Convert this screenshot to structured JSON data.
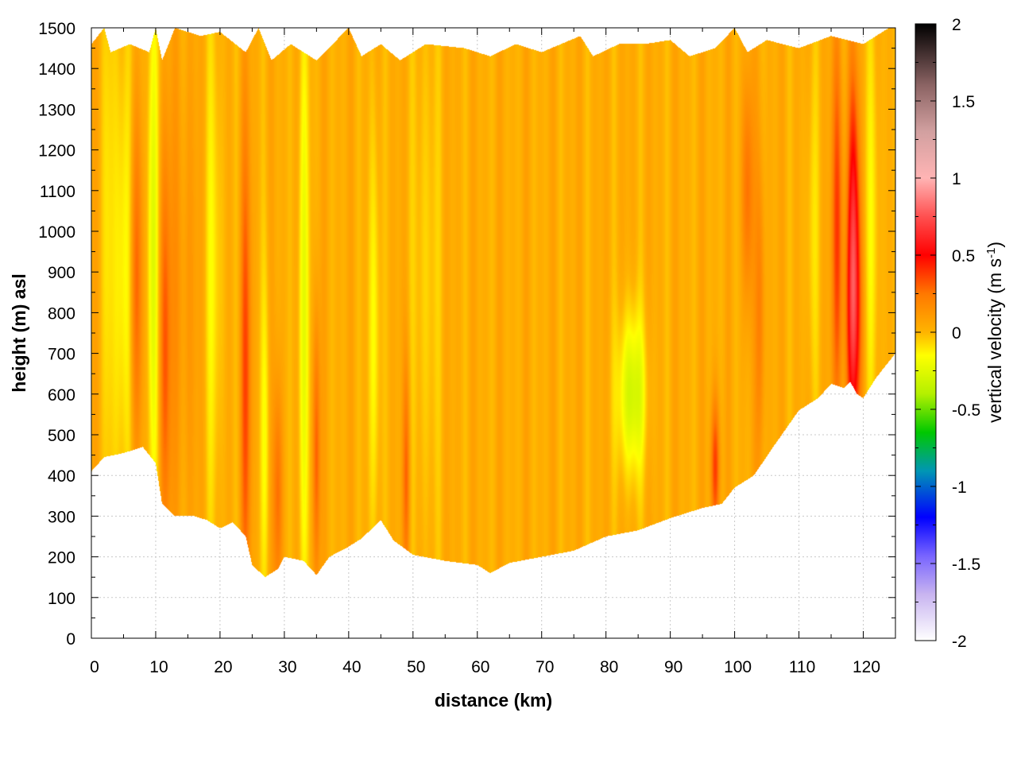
{
  "chart_data": {
    "type": "heatmap",
    "title": "",
    "xlabel": "distance (km)",
    "ylabel": "height (m) asl",
    "xlim": [
      0,
      125
    ],
    "ylim": [
      0,
      1500
    ],
    "x_ticks": [
      "0",
      "10",
      "20",
      "30",
      "40",
      "50",
      "60",
      "70",
      "80",
      "90",
      "100",
      "110",
      "120"
    ],
    "y_ticks": [
      "0",
      "100",
      "200",
      "300",
      "400",
      "500",
      "600",
      "700",
      "800",
      "900",
      "1000",
      "1100",
      "1200",
      "1300",
      "1400",
      "1500"
    ],
    "grid": true,
    "colorbar": {
      "label_main": "vertical velocity (m s",
      "label_sup": "-1",
      "label_close": ")",
      "range": [
        -2,
        2
      ],
      "ticks": [
        "2",
        "1.5",
        "1",
        "0.5",
        "0",
        "-0.5",
        "-1",
        "-1.5",
        "-2"
      ],
      "stops": [
        {
          "value": -2.0,
          "color": "#ffffff"
        },
        {
          "value": -1.7,
          "color": "#c8b4f0"
        },
        {
          "value": -1.45,
          "color": "#7864ff"
        },
        {
          "value": -1.2,
          "color": "#0000ff"
        },
        {
          "value": -0.9,
          "color": "#0096b4"
        },
        {
          "value": -0.65,
          "color": "#00c800"
        },
        {
          "value": -0.4,
          "color": "#b4f000"
        },
        {
          "value": -0.15,
          "color": "#ffff00"
        },
        {
          "value": 0.0,
          "color": "#ffb400"
        },
        {
          "value": 0.25,
          "color": "#ff7800"
        },
        {
          "value": 0.5,
          "color": "#ff0000"
        },
        {
          "value": 0.75,
          "color": "#ff5050"
        },
        {
          "value": 1.0,
          "color": "#ffb4b4"
        },
        {
          "value": 1.3,
          "color": "#d2a0a0"
        },
        {
          "value": 1.6,
          "color": "#8c6464"
        },
        {
          "value": 2.0,
          "color": "#000000"
        }
      ]
    },
    "field": {
      "background_value": 0.03,
      "ground_height": [
        [
          0,
          410
        ],
        [
          2,
          445
        ],
        [
          5,
          455
        ],
        [
          8,
          470
        ],
        [
          10,
          430
        ],
        [
          11,
          330
        ],
        [
          13,
          300
        ],
        [
          16,
          300
        ],
        [
          18,
          290
        ],
        [
          20,
          270
        ],
        [
          22,
          285
        ],
        [
          24,
          250
        ],
        [
          25,
          180
        ],
        [
          27,
          150
        ],
        [
          29,
          170
        ],
        [
          30,
          200
        ],
        [
          33,
          190
        ],
        [
          35,
          155
        ],
        [
          37,
          200
        ],
        [
          40,
          225
        ],
        [
          42,
          245
        ],
        [
          45,
          290
        ],
        [
          47,
          240
        ],
        [
          50,
          205
        ],
        [
          55,
          190
        ],
        [
          60,
          180
        ],
        [
          62,
          160
        ],
        [
          65,
          185
        ],
        [
          70,
          200
        ],
        [
          75,
          215
        ],
        [
          80,
          250
        ],
        [
          85,
          265
        ],
        [
          90,
          295
        ],
        [
          95,
          320
        ],
        [
          98,
          330
        ],
        [
          100,
          370
        ],
        [
          103,
          400
        ],
        [
          106,
          470
        ],
        [
          110,
          560
        ],
        [
          113,
          590
        ],
        [
          115,
          625
        ],
        [
          117,
          615
        ],
        [
          118,
          630
        ],
        [
          119,
          600
        ],
        [
          120,
          590
        ],
        [
          122,
          640
        ],
        [
          125,
          700
        ]
      ],
      "top_height": [
        [
          0,
          1460
        ],
        [
          2,
          1500
        ],
        [
          3,
          1440
        ],
        [
          6,
          1460
        ],
        [
          9,
          1440
        ],
        [
          10,
          1500
        ],
        [
          11,
          1420
        ],
        [
          13,
          1500
        ],
        [
          17,
          1480
        ],
        [
          20,
          1490
        ],
        [
          24,
          1440
        ],
        [
          26,
          1500
        ],
        [
          28,
          1420
        ],
        [
          31,
          1460
        ],
        [
          35,
          1420
        ],
        [
          40,
          1500
        ],
        [
          42,
          1430
        ],
        [
          45,
          1460
        ],
        [
          48,
          1420
        ],
        [
          52,
          1460
        ],
        [
          58,
          1450
        ],
        [
          62,
          1430
        ],
        [
          66,
          1460
        ],
        [
          70,
          1440
        ],
        [
          76,
          1480
        ],
        [
          78,
          1430
        ],
        [
          82,
          1460
        ],
        [
          86,
          1460
        ],
        [
          90,
          1470
        ],
        [
          93,
          1430
        ],
        [
          97,
          1450
        ],
        [
          100,
          1500
        ],
        [
          102,
          1440
        ],
        [
          105,
          1470
        ],
        [
          110,
          1450
        ],
        [
          115,
          1480
        ],
        [
          120,
          1460
        ],
        [
          124,
          1500
        ],
        [
          125,
          1500
        ]
      ],
      "features": [
        {
          "x": 2.5,
          "y": 1000,
          "sx": 0.6,
          "sy": 520,
          "v": -0.12
        },
        {
          "x": 5,
          "y": 900,
          "sx": 1.0,
          "sy": 450,
          "v": -0.22
        },
        {
          "x": 7,
          "y": 880,
          "sx": 0.7,
          "sy": 320,
          "v": 0.28
        },
        {
          "x": 9.5,
          "y": 950,
          "sx": 0.6,
          "sy": 500,
          "v": -0.3
        },
        {
          "x": 11.5,
          "y": 700,
          "sx": 0.6,
          "sy": 350,
          "v": 0.25
        },
        {
          "x": 14,
          "y": 850,
          "sx": 2.0,
          "sy": 450,
          "v": 0.1
        },
        {
          "x": 19,
          "y": 900,
          "sx": 1.0,
          "sy": 450,
          "v": -0.15
        },
        {
          "x": 24,
          "y": 650,
          "sx": 0.6,
          "sy": 450,
          "v": 0.3
        },
        {
          "x": 27,
          "y": 500,
          "sx": 0.5,
          "sy": 300,
          "v": -0.15
        },
        {
          "x": 29,
          "y": 350,
          "sx": 0.5,
          "sy": 200,
          "v": 0.25
        },
        {
          "x": 33,
          "y": 800,
          "sx": 0.6,
          "sy": 550,
          "v": -0.25
        },
        {
          "x": 35,
          "y": 450,
          "sx": 0.4,
          "sy": 250,
          "v": 0.3
        },
        {
          "x": 44,
          "y": 750,
          "sx": 0.6,
          "sy": 400,
          "v": -0.2
        },
        {
          "x": 49,
          "y": 400,
          "sx": 0.4,
          "sy": 200,
          "v": 0.25
        },
        {
          "x": 52,
          "y": 900,
          "sx": 1.5,
          "sy": 500,
          "v": -0.1
        },
        {
          "x": 84,
          "y": 600,
          "sx": 1.5,
          "sy": 140,
          "v": -0.35
        },
        {
          "x": 97,
          "y": 420,
          "sx": 0.5,
          "sy": 120,
          "v": 0.35
        },
        {
          "x": 102,
          "y": 1100,
          "sx": 0.6,
          "sy": 200,
          "v": 0.25
        },
        {
          "x": 104,
          "y": 800,
          "sx": 0.5,
          "sy": 300,
          "v": 0.2
        },
        {
          "x": 112,
          "y": 1000,
          "sx": 0.8,
          "sy": 300,
          "v": -0.1
        },
        {
          "x": 116,
          "y": 1000,
          "sx": 0.6,
          "sy": 350,
          "v": 0.35
        },
        {
          "x": 118.5,
          "y": 780,
          "sx": 0.8,
          "sy": 230,
          "v": 0.55
        },
        {
          "x": 118.5,
          "y": 1100,
          "sx": 0.6,
          "sy": 250,
          "v": 0.35
        },
        {
          "x": 121.5,
          "y": 1000,
          "sx": 0.8,
          "sy": 400,
          "v": -0.15
        }
      ]
    }
  }
}
